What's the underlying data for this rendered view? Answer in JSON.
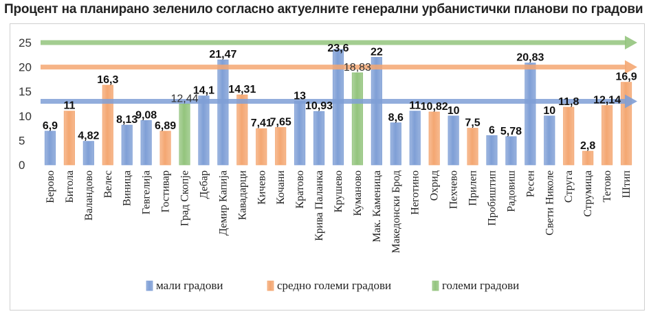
{
  "chart_data": {
    "type": "bar",
    "title": "Процент на планирано зеленило согласно актуелните генерални урбанистички планови по градови",
    "xlabel": "",
    "ylabel": "",
    "ylim": [
      0,
      25
    ],
    "yticks": [
      0,
      5,
      10,
      15,
      20,
      25
    ],
    "categories": [
      "Берово",
      "Битола",
      "Валандово",
      "Велес",
      "Виница",
      "Гевгелија",
      "Гостивар",
      "Град Скопје",
      "Дебар",
      "Демир Капија",
      "Кавадарци",
      "Кичево",
      "Кочани",
      "Кратово",
      "Крива Паланка",
      "Крушево",
      "Куманово",
      "Мак. Каменица",
      "Македонски Брод",
      "Неготино",
      "Охрид",
      "Пехчево",
      "Прилеп",
      "Пробиштип",
      "Радовиш",
      "Ресен",
      "Свети Николе",
      "Струга",
      "Струмица",
      "Тетово",
      "Штип"
    ],
    "values": [
      6.9,
      11,
      4.82,
      16.3,
      8.13,
      9.08,
      6.89,
      12.44,
      14.1,
      21.47,
      14.31,
      7.41,
      7.65,
      13,
      10.93,
      23.6,
      18.83,
      22,
      8.6,
      11,
      10.82,
      10,
      7.5,
      6,
      5.78,
      20.83,
      10,
      11.8,
      2.8,
      12.14,
      16.9
    ],
    "value_labels": [
      "6,9",
      "11",
      "4,82",
      "16,3",
      "8,13",
      "9,08",
      "6,89",
      "12,44",
      "14,1",
      "21,47",
      "14,31",
      "7,41",
      "7,65",
      "13",
      "10,93",
      "23,6",
      "18,83",
      "22",
      "8,6",
      "11",
      "10,82",
      "10",
      "7,5",
      "6",
      "5,78",
      "20,83",
      "10",
      "11,8",
      "2,8",
      "12,14",
      "16,9"
    ],
    "groups": [
      "small",
      "medium",
      "small",
      "medium",
      "small",
      "small",
      "medium",
      "large",
      "small",
      "small",
      "medium",
      "medium",
      "medium",
      "small",
      "small",
      "small",
      "large",
      "small",
      "small",
      "small",
      "medium",
      "small",
      "medium",
      "small",
      "small",
      "small",
      "small",
      "medium",
      "medium",
      "medium",
      "medium"
    ],
    "series": [
      {
        "key": "small",
        "name": "мали градови",
        "color": "#7f9fd6"
      },
      {
        "key": "medium",
        "name": "средно големи градови",
        "color": "#f4a772"
      },
      {
        "key": "large",
        "name": "големи градови",
        "color": "#93c47d"
      }
    ],
    "reference_arrows": [
      {
        "series": "large",
        "value": 25
      },
      {
        "series": "medium",
        "value": 20
      },
      {
        "series": "small",
        "value": 13
      }
    ],
    "legend_position": "bottom",
    "grid": false
  }
}
